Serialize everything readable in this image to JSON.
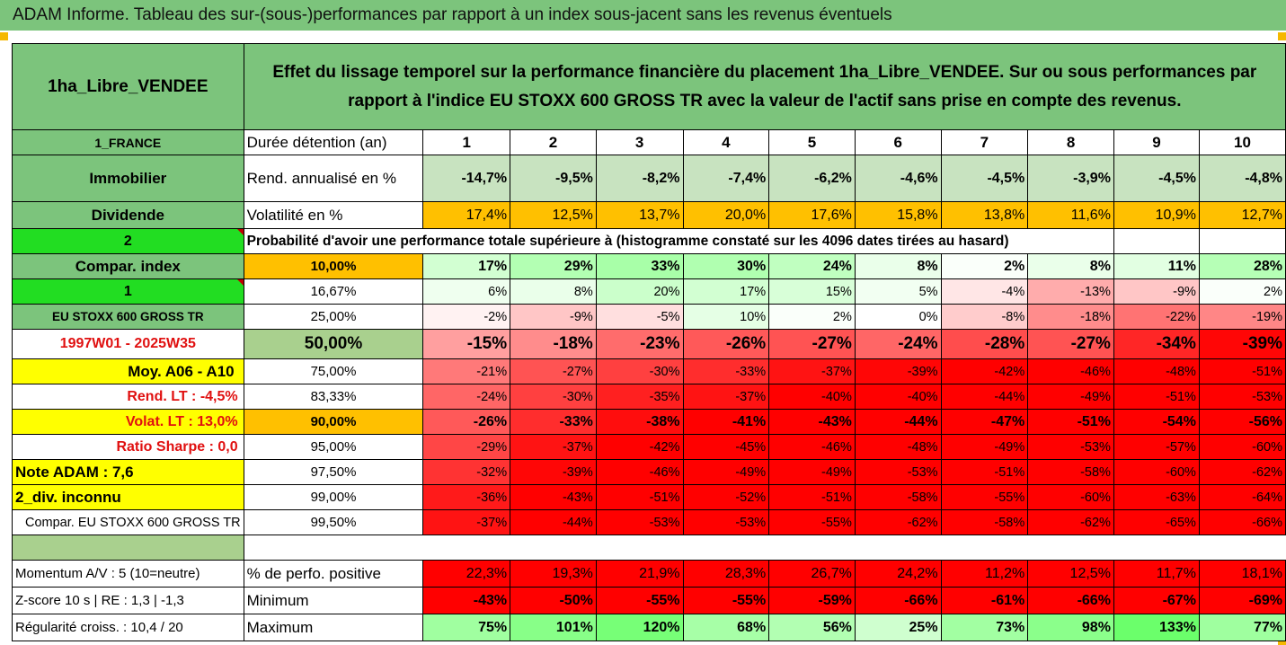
{
  "title": "ADAM Informe. Tableau des sur-(sous-)performances par rapport à un index sous-jacent sans les revenus éventuels",
  "header": {
    "asset": "1ha_Libre_VENDEE",
    "description": "Effet du lissage temporel sur la performance financière du placement 1ha_Libre_VENDEE. Sur ou sous performances par rapport à l'indice EU STOXX 600 GROSS TR avec la valeur de l'actif sans prise en compte des revenus."
  },
  "left_labels": {
    "country": "1_FRANCE",
    "category": "Immobilier",
    "dividend": "Dividende",
    "num2": "2",
    "compar_index": "Compar. index",
    "num1": "1",
    "index_name": "EU STOXX 600 GROSS TR",
    "period": "1997W01 - 2025W35",
    "moy": "Moy. A06 - A10",
    "rend_lt": "Rend. LT :   -4,5%",
    "volat_lt": "Volat. LT :   13,0%",
    "sharpe": "Ratio Sharpe :    0,0",
    "note": "Note ADAM : 7,6",
    "div": "2_div. inconnu",
    "compar_full": "Compar. EU STOXX 600 GROSS TR"
  },
  "row_labels": {
    "duree": "Durée détention (an)",
    "rend": "Rend. annualisé en %",
    "volat": "Volatilité en %",
    "proba": "Probabilité d'avoir une performance totale supérieure à (histogramme constaté sur les 4096 dates tirées au hasard)"
  },
  "years": [
    "1",
    "2",
    "3",
    "4",
    "5",
    "6",
    "7",
    "8",
    "9",
    "10"
  ],
  "rend": [
    "-14,7%",
    "-9,5%",
    "-8,2%",
    "-7,4%",
    "-6,2%",
    "-4,6%",
    "-4,5%",
    "-3,9%",
    "-4,5%",
    "-4,8%"
  ],
  "volat": [
    "17,4%",
    "12,5%",
    "13,7%",
    "20,0%",
    "17,6%",
    "15,8%",
    "13,8%",
    "11,6%",
    "10,9%",
    "12,7%"
  ],
  "prob_rows": [
    {
      "pct": "10,00%",
      "vals": [
        "17%",
        "29%",
        "33%",
        "30%",
        "24%",
        "8%",
        "2%",
        "8%",
        "11%",
        "28%"
      ]
    },
    {
      "pct": "16,67%",
      "vals": [
        "6%",
        "8%",
        "20%",
        "17%",
        "15%",
        "5%",
        "-4%",
        "-13%",
        "-9%",
        "2%"
      ]
    },
    {
      "pct": "25,00%",
      "vals": [
        "-2%",
        "-9%",
        "-5%",
        "10%",
        "2%",
        "0%",
        "-8%",
        "-18%",
        "-22%",
        "-19%"
      ]
    },
    {
      "pct": "50,00%",
      "vals": [
        "-15%",
        "-18%",
        "-23%",
        "-26%",
        "-27%",
        "-24%",
        "-28%",
        "-27%",
        "-34%",
        "-39%"
      ]
    },
    {
      "pct": "75,00%",
      "vals": [
        "-21%",
        "-27%",
        "-30%",
        "-33%",
        "-37%",
        "-39%",
        "-42%",
        "-46%",
        "-48%",
        "-51%"
      ]
    },
    {
      "pct": "83,33%",
      "vals": [
        "-24%",
        "-30%",
        "-35%",
        "-37%",
        "-40%",
        "-40%",
        "-44%",
        "-49%",
        "-51%",
        "-53%"
      ]
    },
    {
      "pct": "90,00%",
      "vals": [
        "-26%",
        "-33%",
        "-38%",
        "-41%",
        "-43%",
        "-44%",
        "-47%",
        "-51%",
        "-54%",
        "-56%"
      ]
    },
    {
      "pct": "95,00%",
      "vals": [
        "-29%",
        "-37%",
        "-42%",
        "-45%",
        "-46%",
        "-48%",
        "-49%",
        "-53%",
        "-57%",
        "-60%"
      ]
    },
    {
      "pct": "97,50%",
      "vals": [
        "-32%",
        "-39%",
        "-46%",
        "-49%",
        "-49%",
        "-53%",
        "-51%",
        "-58%",
        "-60%",
        "-62%"
      ]
    },
    {
      "pct": "99,00%",
      "vals": [
        "-36%",
        "-43%",
        "-51%",
        "-52%",
        "-51%",
        "-58%",
        "-55%",
        "-60%",
        "-63%",
        "-64%"
      ]
    },
    {
      "pct": "99,50%",
      "vals": [
        "-37%",
        "-44%",
        "-53%",
        "-53%",
        "-55%",
        "-62%",
        "-58%",
        "-62%",
        "-65%",
        "-66%"
      ]
    }
  ],
  "bottom": {
    "momentum_label": "Momentum A/V : 5 (10=neutre)",
    "zscore_label": "Z-score 10 s  |  RE : 1,3  |  -1,3",
    "regularite_label": "Régularité croiss. : 10,4 / 20",
    "positive_label": "% de perfo. positive",
    "min_label": "Minimum",
    "max_label": "Maximum",
    "positive": [
      "22,3%",
      "19,3%",
      "21,9%",
      "28,3%",
      "26,7%",
      "24,2%",
      "11,2%",
      "12,5%",
      "11,7%",
      "18,1%"
    ],
    "minimum": [
      "-43%",
      "-50%",
      "-55%",
      "-55%",
      "-59%",
      "-66%",
      "-61%",
      "-66%",
      "-67%",
      "-69%"
    ],
    "maximum": [
      "75%",
      "101%",
      "120%",
      "68%",
      "56%",
      "25%",
      "73%",
      "98%",
      "133%",
      "77%"
    ]
  },
  "colors": {
    "header_green": "#7cc47c",
    "bright_green": "#22dd22",
    "yellow": "#ffff00",
    "orange": "#ffc000",
    "red": "#ff0000"
  }
}
